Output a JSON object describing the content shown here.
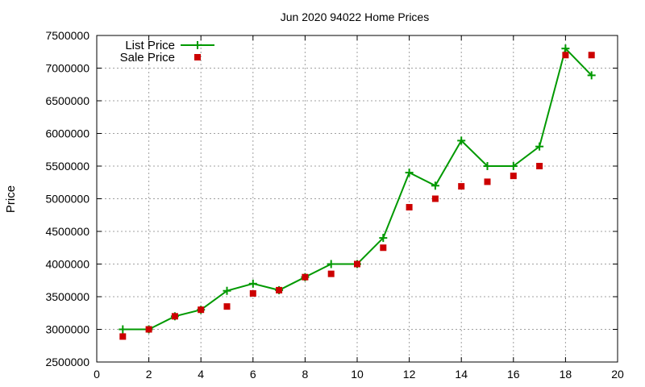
{
  "chart_data": {
    "type": "line",
    "title": "Jun 2020 94022 Home Prices",
    "xlabel": "",
    "ylabel": "Price",
    "xlim": [
      0,
      20
    ],
    "ylim": [
      2500000,
      7500000
    ],
    "xticks": [
      0,
      2,
      4,
      6,
      8,
      10,
      12,
      14,
      16,
      18,
      20
    ],
    "yticks": [
      2500000,
      3000000,
      3500000,
      4000000,
      4500000,
      5000000,
      5500000,
      6000000,
      6500000,
      7000000,
      7500000
    ],
    "xtick_labels": [
      "0",
      "2",
      "4",
      "6",
      "8",
      "10",
      "12",
      "14",
      "16",
      "18",
      "20"
    ],
    "ytick_labels": [
      "2500000",
      "3000000",
      "3500000",
      "4000000",
      "4500000",
      "5000000",
      "5500000",
      "6000000",
      "6500000",
      "7000000",
      "7500000"
    ],
    "grid": true,
    "legend_position": "top-left",
    "series": [
      {
        "name": "List Price",
        "style": "line-with-plus-markers",
        "color": "#009900",
        "points": [
          [
            1,
            3000000
          ],
          [
            2,
            3000000
          ],
          [
            3,
            3200000
          ],
          [
            4,
            3300000
          ],
          [
            5,
            3590000
          ],
          [
            6,
            3700000
          ],
          [
            7,
            3600000
          ],
          [
            8,
            3800000
          ],
          [
            9,
            4000000
          ],
          [
            10,
            4000000
          ],
          [
            11,
            4400000
          ],
          [
            12,
            5400000
          ],
          [
            13,
            5200000
          ],
          [
            14,
            5890000
          ],
          [
            15,
            5500000
          ],
          [
            16,
            5500000
          ],
          [
            17,
            5800000
          ],
          [
            18,
            7300000
          ],
          [
            19,
            6890000
          ]
        ]
      },
      {
        "name": "Sale Price",
        "style": "square-markers",
        "color": "#cc0000",
        "points": [
          [
            1,
            2890000
          ],
          [
            2,
            3000000
          ],
          [
            3,
            3200000
          ],
          [
            4,
            3300000
          ],
          [
            5,
            3350000
          ],
          [
            6,
            3550000
          ],
          [
            7,
            3600000
          ],
          [
            8,
            3800000
          ],
          [
            9,
            3850000
          ],
          [
            10,
            4000000
          ],
          [
            11,
            4250000
          ],
          [
            12,
            4870000
          ],
          [
            13,
            5000000
          ],
          [
            14,
            5190000
          ],
          [
            15,
            5260000
          ],
          [
            16,
            5350000
          ],
          [
            17,
            5500000
          ],
          [
            18,
            7200000
          ],
          [
            19,
            7200000
          ]
        ]
      }
    ]
  }
}
